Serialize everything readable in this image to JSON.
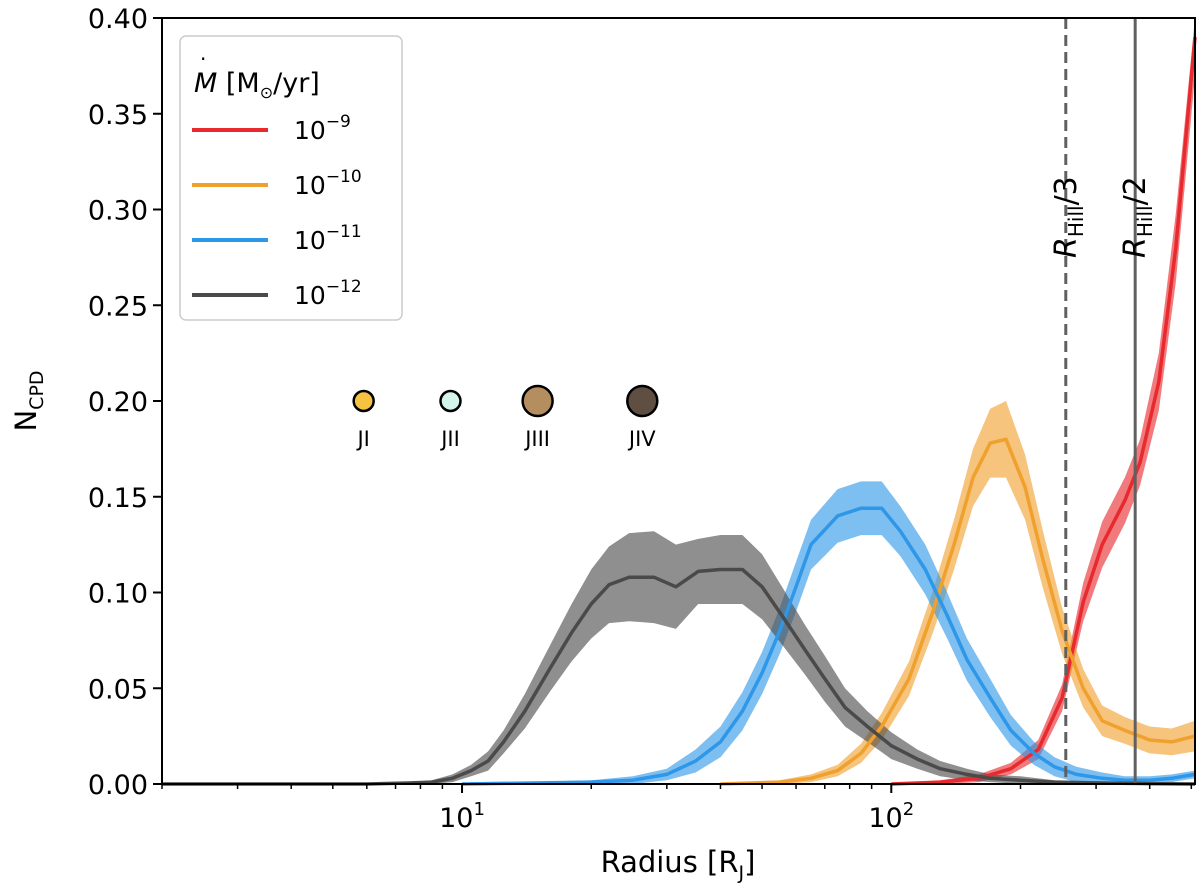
{
  "chart_data": {
    "type": "line",
    "xlabel": "Radius [R_J]",
    "xlabel_main": "Radius [R",
    "xlabel_sub": "J",
    "xlabel_close": "]",
    "ylabel": "N_CPD",
    "ylabel_main": "N",
    "ylabel_sub": "CPD",
    "xscale": "log",
    "xlim": [
      2,
      510
    ],
    "ylim": [
      0,
      0.4
    ],
    "x_ticks": [
      {
        "value": 10,
        "base": "10",
        "exp": "1"
      },
      {
        "value": 100,
        "base": "10",
        "exp": "2"
      }
    ],
    "y_ticks": [
      {
        "value": 0.0,
        "label": "0.00"
      },
      {
        "value": 0.05,
        "label": "0.05"
      },
      {
        "value": 0.1,
        "label": "0.10"
      },
      {
        "value": 0.15,
        "label": "0.15"
      },
      {
        "value": 0.2,
        "label": "0.20"
      },
      {
        "value": 0.25,
        "label": "0.25"
      },
      {
        "value": 0.3,
        "label": "0.30"
      },
      {
        "value": 0.35,
        "label": "0.35"
      },
      {
        "value": 0.4,
        "label": "0.40"
      }
    ],
    "legend": {
      "title_main": "M",
      "title_rest": " [M",
      "title_sun": "⊙",
      "title_end": "/yr]",
      "placement": "top-left"
    },
    "series": [
      {
        "name": "10^-9",
        "base": "10",
        "exp": "−9",
        "color": "#e8292d",
        "x": [
          100,
          130,
          160,
          190,
          220,
          250,
          280,
          310,
          350,
          380,
          420,
          460,
          510
        ],
        "y": [
          0.0,
          0.001,
          0.003,
          0.008,
          0.018,
          0.045,
          0.095,
          0.125,
          0.148,
          0.168,
          0.21,
          0.28,
          0.39
        ],
        "err": [
          0.0,
          0.001,
          0.002,
          0.003,
          0.005,
          0.007,
          0.01,
          0.012,
          0.012,
          0.012,
          0.015,
          0.018,
          0.02
        ]
      },
      {
        "name": "10^-10",
        "base": "10",
        "exp": "−10",
        "color": "#f0a02c",
        "x": [
          40,
          55,
          65,
          75,
          85,
          95,
          110,
          125,
          140,
          155,
          170,
          185,
          205,
          225,
          250,
          280,
          310,
          350,
          400,
          450,
          510
        ],
        "y": [
          0.0,
          0.001,
          0.003,
          0.007,
          0.016,
          0.03,
          0.055,
          0.09,
          0.125,
          0.16,
          0.178,
          0.18,
          0.155,
          0.118,
          0.08,
          0.05,
          0.033,
          0.028,
          0.023,
          0.022,
          0.025
        ],
        "err": [
          0.0,
          0.001,
          0.002,
          0.003,
          0.005,
          0.007,
          0.009,
          0.011,
          0.013,
          0.015,
          0.018,
          0.02,
          0.017,
          0.015,
          0.012,
          0.01,
          0.008,
          0.007,
          0.007,
          0.007,
          0.008
        ]
      },
      {
        "name": "10^-11",
        "base": "10",
        "exp": "−11",
        "color": "#2f97e8",
        "x": [
          10,
          20,
          25,
          30,
          35,
          40,
          45,
          50,
          55,
          60,
          65,
          75,
          85,
          95,
          105,
          120,
          135,
          150,
          170,
          190,
          215,
          240,
          270,
          310,
          350,
          400,
          450,
          510
        ],
        "y": [
          0.0,
          0.001,
          0.002,
          0.005,
          0.012,
          0.022,
          0.038,
          0.058,
          0.08,
          0.103,
          0.125,
          0.14,
          0.144,
          0.144,
          0.132,
          0.112,
          0.088,
          0.065,
          0.045,
          0.028,
          0.016,
          0.009,
          0.005,
          0.003,
          0.002,
          0.002,
          0.003,
          0.005
        ],
        "err": [
          0.0,
          0.001,
          0.002,
          0.003,
          0.006,
          0.008,
          0.01,
          0.011,
          0.012,
          0.013,
          0.013,
          0.014,
          0.014,
          0.014,
          0.013,
          0.013,
          0.012,
          0.011,
          0.01,
          0.008,
          0.006,
          0.005,
          0.004,
          0.003,
          0.002,
          0.002,
          0.002,
          0.002
        ]
      },
      {
        "name": "10^-12",
        "base": "10",
        "exp": "−12",
        "color": "#4a4a4a",
        "x": [
          2,
          4,
          6,
          7.5,
          8.5,
          9.5,
          10.5,
          11.5,
          12.5,
          14,
          16,
          18,
          20,
          22,
          24.5,
          28,
          31.5,
          35.5,
          40,
          45,
          50,
          56,
          63,
          70,
          78,
          88,
          100,
          115,
          130,
          150,
          170,
          200,
          240,
          300,
          400,
          510
        ],
        "y": [
          0.0,
          0.0,
          0.0,
          0.0005,
          0.001,
          0.003,
          0.007,
          0.012,
          0.022,
          0.038,
          0.06,
          0.079,
          0.094,
          0.104,
          0.108,
          0.108,
          0.103,
          0.111,
          0.112,
          0.112,
          0.103,
          0.087,
          0.07,
          0.055,
          0.04,
          0.03,
          0.02,
          0.013,
          0.008,
          0.005,
          0.003,
          0.002,
          0.001,
          0.0005,
          0.0002,
          0.0
        ],
        "err": [
          0.0,
          0.0,
          0.0,
          0.0004,
          0.001,
          0.002,
          0.003,
          0.005,
          0.006,
          0.009,
          0.012,
          0.015,
          0.018,
          0.02,
          0.023,
          0.024,
          0.022,
          0.017,
          0.018,
          0.018,
          0.017,
          0.015,
          0.013,
          0.012,
          0.01,
          0.008,
          0.007,
          0.005,
          0.004,
          0.003,
          0.002,
          0.002,
          0.001,
          0.001,
          0.0005,
          0.0
        ]
      }
    ],
    "vlines": [
      {
        "name": "hill-third",
        "x": 255,
        "style": "dashed",
        "label_main": "R",
        "label_sub": "Hill",
        "label_suffix": "/3"
      },
      {
        "name": "hill-half",
        "x": 370,
        "style": "solid",
        "label_main": "R",
        "label_sub": "Hill",
        "label_suffix": "/2"
      }
    ],
    "moons": [
      {
        "label": "JI",
        "x": 5.9,
        "y": 0.2,
        "color": "#f5c242",
        "size": "small"
      },
      {
        "label": "JII",
        "x": 9.4,
        "y": 0.2,
        "color": "#d4f5ec",
        "size": "small"
      },
      {
        "label": "JIII",
        "x": 15,
        "y": 0.2,
        "color": "#b58e60",
        "size": "large"
      },
      {
        "label": "JIV",
        "x": 26.3,
        "y": 0.2,
        "color": "#5e4f42",
        "size": "large"
      }
    ]
  }
}
